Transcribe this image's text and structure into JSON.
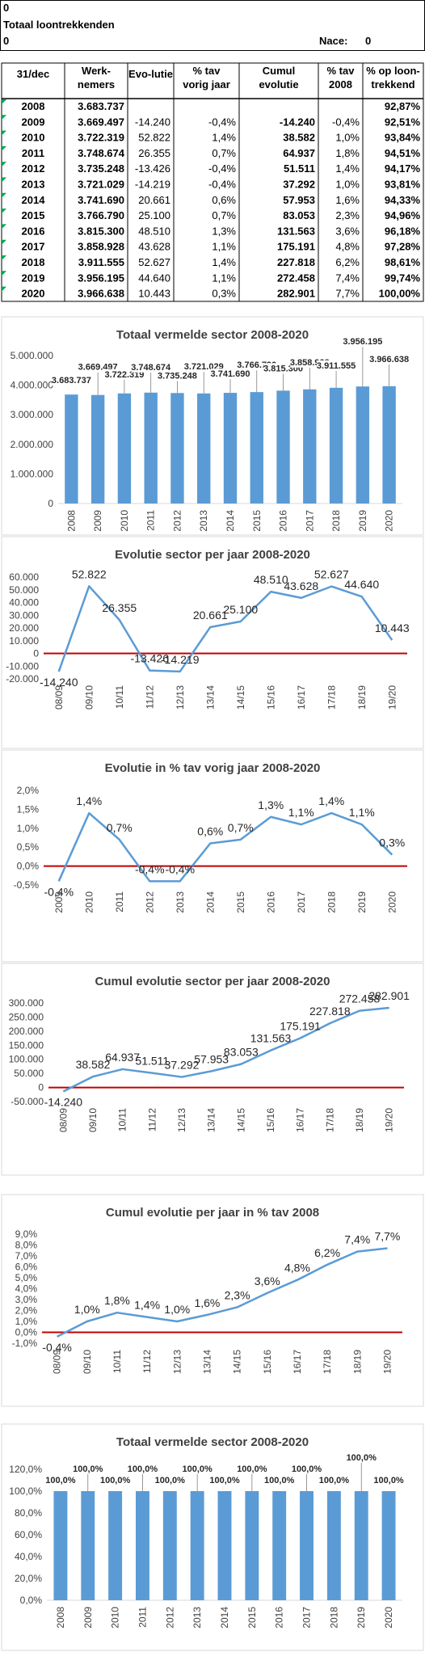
{
  "header": {
    "top_value": "0",
    "title": "Totaal loontrekkenden",
    "left_value": "0",
    "nace_label": "Nace:",
    "nace_value": "0"
  },
  "table": {
    "columns": [
      "31/dec",
      "Werk-|nemers",
      "Evo-lutie",
      "% tav|vorig jaar",
      "Cumul|evolutie",
      "% tav|2008",
      "% op loon-|trekkend"
    ],
    "rows": [
      [
        "2008",
        "3.683.737",
        "",
        "",
        "",
        "",
        "92,87%"
      ],
      [
        "2009",
        "3.669.497",
        "-14.240",
        "-0,4%",
        "-14.240",
        "-0,4%",
        "92,51%"
      ],
      [
        "2010",
        "3.722.319",
        "52.822",
        "1,4%",
        "38.582",
        "1,0%",
        "93,84%"
      ],
      [
        "2011",
        "3.748.674",
        "26.355",
        "0,7%",
        "64.937",
        "1,8%",
        "94,51%"
      ],
      [
        "2012",
        "3.735.248",
        "-13.426",
        "-0,4%",
        "51.511",
        "1,4%",
        "94,17%"
      ],
      [
        "2013",
        "3.721.029",
        "-14.219",
        "-0,4%",
        "37.292",
        "1,0%",
        "93,81%"
      ],
      [
        "2014",
        "3.741.690",
        "20.661",
        "0,6%",
        "57.953",
        "1,6%",
        "94,33%"
      ],
      [
        "2015",
        "3.766.790",
        "25.100",
        "0,7%",
        "83.053",
        "2,3%",
        "94,96%"
      ],
      [
        "2016",
        "3.815.300",
        "48.510",
        "1,3%",
        "131.563",
        "3,6%",
        "96,18%"
      ],
      [
        "2017",
        "3.858.928",
        "43.628",
        "1,1%",
        "175.191",
        "4,8%",
        "97,28%"
      ],
      [
        "2018",
        "3.911.555",
        "52.627",
        "1,4%",
        "227.818",
        "6,2%",
        "98,61%"
      ],
      [
        "2019",
        "3.956.195",
        "44.640",
        "1,1%",
        "272.458",
        "7,4%",
        "99,74%"
      ],
      [
        "2020",
        "3.966.638",
        "10.443",
        "0,3%",
        "282.901",
        "7,7%",
        "100,00%"
      ]
    ]
  },
  "colors": {
    "bar": "#5b9bd5",
    "line": "#5b9bd5",
    "zero_line": "#c00000",
    "grid": "#d9d9d9",
    "marker": "#00a650",
    "border": "#000000"
  },
  "chart_data": [
    {
      "type": "bar",
      "title": "Totaal vermelde sector 2008-2020",
      "categories": [
        "2008",
        "2009",
        "2010",
        "2011",
        "2012",
        "2013",
        "2014",
        "2015",
        "2016",
        "2017",
        "2018",
        "2019",
        "2020"
      ],
      "values": [
        3683737,
        3669497,
        3722319,
        3748674,
        3735248,
        3721029,
        3741690,
        3766790,
        3815300,
        3858928,
        3911555,
        3956195,
        3966638
      ],
      "labels": [
        "3.683.737",
        "3.669.497",
        "3.722.319",
        "3.748.674",
        "3.735.248",
        "3.721.029",
        "3.741.690",
        "3.766.790",
        "3.815.300",
        "3.858.928",
        "3.911.555",
        "3.956.195",
        "3.966.638"
      ],
      "yticks": [
        "0",
        "1.000.000",
        "2.000.000",
        "3.000.000",
        "4.000.000",
        "5.000.000"
      ],
      "ylim": [
        0,
        5000000
      ],
      "grid": false
    },
    {
      "type": "line",
      "title": "Evolutie sector per jaar 2008-2020",
      "categories": [
        "08/09",
        "09/10",
        "10/11",
        "11/12",
        "12/13",
        "13/14",
        "14/15",
        "15/16",
        "16/17",
        "17/18",
        "18/19",
        "19/20"
      ],
      "values": [
        -14240,
        52822,
        26355,
        -13426,
        -14219,
        20661,
        25100,
        48510,
        43628,
        52627,
        44640,
        10443
      ],
      "labels": [
        "-14.240",
        "52.822",
        "26.355",
        "-13.426",
        "-14.219",
        "20.661",
        "25.100",
        "48.510",
        "43.628",
        "52.627",
        "44.640",
        "10.443"
      ],
      "yticks": [
        "-20.000",
        "-10.000",
        "0",
        "10.000",
        "20.000",
        "30.000",
        "40.000",
        "50.000",
        "60.000"
      ],
      "ylim": [
        -20000,
        60000
      ],
      "grid": false
    },
    {
      "type": "line",
      "title": "Evolutie in % tav vorig jaar 2008-2020",
      "categories": [
        "2009",
        "2010",
        "2011",
        "2012",
        "2013",
        "2014",
        "2015",
        "2016",
        "2017",
        "2018",
        "2019",
        "2020"
      ],
      "values": [
        -0.4,
        1.4,
        0.7,
        -0.4,
        -0.4,
        0.6,
        0.7,
        1.3,
        1.1,
        1.4,
        1.1,
        0.3
      ],
      "labels": [
        "-0,4%",
        "1,4%",
        "0,7%",
        "-0,4%",
        "-0,4%",
        "0,6%",
        "0,7%",
        "1,3%",
        "1,1%",
        "1,4%",
        "1,1%",
        "0,3%"
      ],
      "yticks": [
        "-0,5%",
        "0,0%",
        "0,5%",
        "1,0%",
        "1,5%",
        "2,0%"
      ],
      "ylim": [
        -0.5,
        2.0
      ],
      "grid": false
    },
    {
      "type": "line",
      "title": "Cumul evolutie sector per jaar 2008-2020",
      "categories": [
        "08/09",
        "09/10",
        "10/11",
        "11/12",
        "12/13",
        "13/14",
        "14/15",
        "15/16",
        "16/17",
        "17/18",
        "18/19",
        "19/20"
      ],
      "values": [
        -14240,
        38582,
        64937,
        51511,
        37292,
        57953,
        83053,
        131563,
        175191,
        227818,
        272458,
        282901
      ],
      "labels": [
        "-14.240",
        "38.582",
        "64.937",
        "51.511",
        "37.292",
        "57.953",
        "83.053",
        "131.563",
        "175.191",
        "227.818",
        "272.458",
        "282.901"
      ],
      "yticks": [
        "-50.000",
        "0",
        "50.000",
        "100.000",
        "150.000",
        "200.000",
        "250.000",
        "300.000"
      ],
      "ylim": [
        -50000,
        300000
      ],
      "grid": false
    },
    {
      "type": "line",
      "title": "Cumul evolutie per jaar in % tav 2008",
      "categories": [
        "08/09",
        "09/10",
        "10/11",
        "11/12",
        "12/13",
        "13/14",
        "14/15",
        "15/16",
        "16/17",
        "17/18",
        "18/19",
        "19/20"
      ],
      "values": [
        -0.4,
        1.0,
        1.8,
        1.4,
        1.0,
        1.6,
        2.3,
        3.6,
        4.8,
        6.2,
        7.4,
        7.7
      ],
      "labels": [
        "-0,4%",
        "1,0%",
        "1,8%",
        "1,4%",
        "1,0%",
        "1,6%",
        "2,3%",
        "3,6%",
        "4,8%",
        "6,2%",
        "7,4%",
        "7,7%"
      ],
      "yticks": [
        "-1,0%",
        "0,0%",
        "1,0%",
        "2,0%",
        "3,0%",
        "4,0%",
        "5,0%",
        "6,0%",
        "7,0%",
        "8,0%",
        "9,0%"
      ],
      "ylim": [
        -1.0,
        9.0
      ],
      "grid": false
    },
    {
      "type": "bar",
      "title": "Totaal vermelde sector 2008-2020",
      "categories": [
        "2008",
        "2009",
        "2010",
        "2011",
        "2012",
        "2013",
        "2014",
        "2015",
        "2016",
        "2017",
        "2018",
        "2019",
        "2020"
      ],
      "values": [
        100,
        100,
        100,
        100,
        100,
        100,
        100,
        100,
        100,
        100,
        100,
        100,
        100
      ],
      "labels": [
        "100,0%",
        "100,0%",
        "100,0%",
        "100,0%",
        "100,0%",
        "100,0%",
        "100,0%",
        "100,0%",
        "100,0%",
        "100,0%",
        "100,0%",
        "100,0%",
        "100,0%"
      ],
      "yticks": [
        "0,0%",
        "20,0%",
        "40,0%",
        "60,0%",
        "80,0%",
        "100,0%",
        "120,0%"
      ],
      "ylim": [
        0,
        120
      ],
      "grid": false
    }
  ]
}
